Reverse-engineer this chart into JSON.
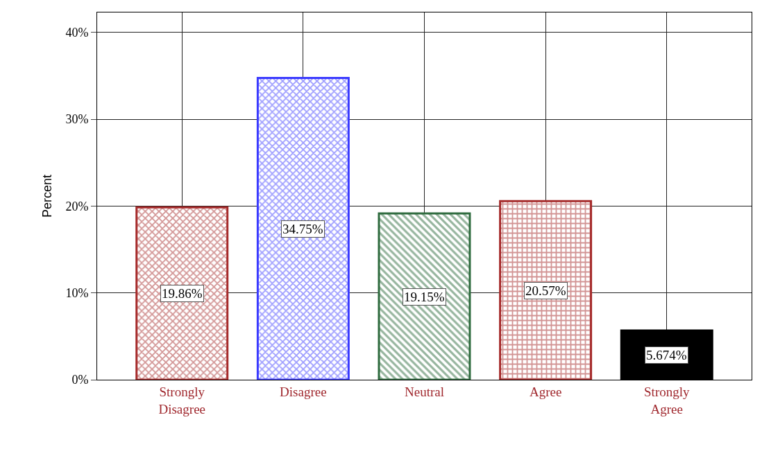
{
  "chart_data": {
    "type": "bar",
    "categories": [
      "Strongly Disagree",
      "Disagree",
      "Neutral",
      "Agree",
      "Strongly Agree"
    ],
    "values": [
      19.86,
      34.75,
      19.15,
      20.57,
      5.674
    ],
    "colors": [
      "#a52a2a",
      "#3a3aff",
      "#2e6b3e",
      "#a52a2a",
      "#000000"
    ],
    "value_labels": [
      "19.86%",
      "34.75%",
      "19.15%",
      "20.57%",
      "5.674%"
    ],
    "ylabel": "Percent",
    "ylim": [
      0,
      42.3
    ],
    "yticks": [
      {
        "value": 0,
        "label": "0%"
      },
      {
        "value": 10,
        "label": "10%"
      },
      {
        "value": 20,
        "label": "20%"
      },
      {
        "value": 30,
        "label": "30%"
      },
      {
        "value": 40,
        "label": "40%"
      }
    ],
    "grid": true
  }
}
